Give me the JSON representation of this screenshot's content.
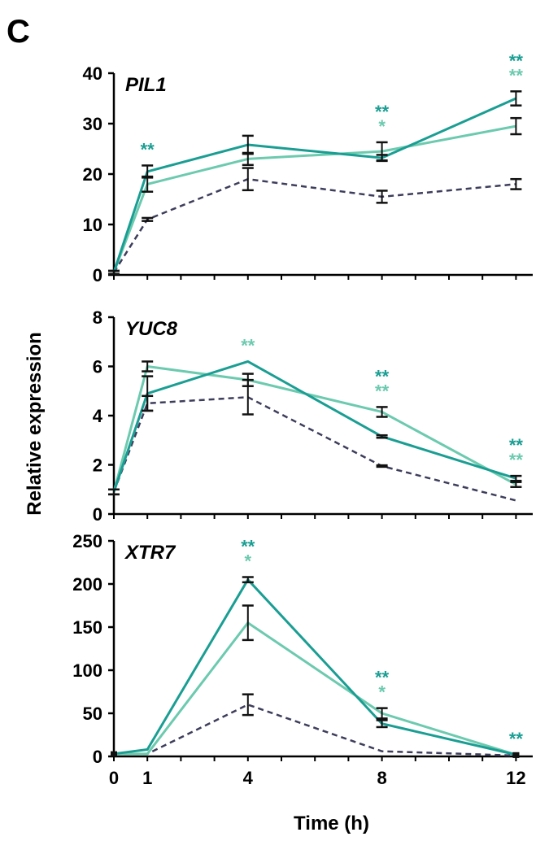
{
  "panel_label": "C",
  "colors": {
    "series_dark_teal": "#1a9e93",
    "series_light_teal": "#6ccaae",
    "series_dashed": "#3d3d5c",
    "error_bar": "#111111",
    "axis": "#000000"
  },
  "chart_data": [
    {
      "type": "line",
      "title": "PIL1",
      "xlabel": "",
      "ylabel": "",
      "x": [
        0,
        1,
        4,
        8,
        12
      ],
      "xlim": [
        0,
        12.5
      ],
      "ylim": [
        0,
        40
      ],
      "yticks": [
        0,
        10,
        20,
        30,
        40
      ],
      "series": [
        {
          "style": "dark_teal",
          "values": [
            0.5,
            20.5,
            25.8,
            23.2,
            35
          ],
          "errors": [
            0.3,
            1.2,
            1.8,
            0.6,
            1.4
          ]
        },
        {
          "style": "light_teal",
          "values": [
            0.5,
            18,
            23,
            24.5,
            29.5
          ],
          "errors": [
            0.3,
            1.5,
            1.2,
            1.8,
            1.6
          ]
        },
        {
          "style": "dashed",
          "values": [
            0.5,
            11,
            19,
            15.5,
            18
          ],
          "errors": [
            0.3,
            0.3,
            2.2,
            1.2,
            1.0
          ]
        }
      ],
      "significance": [
        {
          "x": 1,
          "marks": [
            {
              "style": "dark_teal",
              "text": "**"
            }
          ]
        },
        {
          "x": 8,
          "marks": [
            {
              "style": "dark_teal",
              "text": "**"
            },
            {
              "style": "light_teal",
              "text": "*"
            }
          ]
        },
        {
          "x": 12,
          "marks": [
            {
              "style": "dark_teal",
              "text": "**"
            },
            {
              "style": "light_teal",
              "text": "**"
            }
          ]
        }
      ]
    },
    {
      "type": "line",
      "title": "YUC8",
      "xlabel": "",
      "ylabel": "Relative expression",
      "x": [
        0,
        1,
        4,
        8,
        12
      ],
      "xlim": [
        0,
        12.5
      ],
      "ylim": [
        0,
        8
      ],
      "yticks": [
        0,
        2,
        4,
        6,
        8
      ],
      "series": [
        {
          "style": "dark_teal",
          "values": [
            0.9,
            4.9,
            6.2,
            3.15,
            1.45
          ],
          "errors": [
            0.1,
            0.7,
            0,
            0.05,
            0.1
          ]
        },
        {
          "style": "light_teal",
          "values": [
            0.9,
            6.0,
            5.45,
            4.15,
            1.2
          ],
          "errors": [
            0.1,
            0.2,
            0.25,
            0.2,
            0.1
          ]
        },
        {
          "style": "dashed",
          "values": [
            0.9,
            4.5,
            4.75,
            1.95,
            0.55
          ],
          "errors": [
            0.1,
            0.3,
            0.7,
            0.03,
            0
          ]
        }
      ],
      "significance": [
        {
          "x": 4,
          "marks": [
            {
              "style": "light_teal",
              "text": "**"
            }
          ]
        },
        {
          "x": 8,
          "marks": [
            {
              "style": "dark_teal",
              "text": "**"
            },
            {
              "style": "light_teal",
              "text": "**"
            }
          ]
        },
        {
          "x": 12,
          "marks": [
            {
              "style": "dark_teal",
              "text": "**"
            },
            {
              "style": "light_teal",
              "text": "**"
            }
          ]
        }
      ]
    },
    {
      "type": "line",
      "title": "XTR7",
      "xlabel": "Time (h)",
      "ylabel": "",
      "x": [
        0,
        1,
        4,
        8,
        12
      ],
      "xlim": [
        0,
        12.5
      ],
      "ylim": [
        0,
        250
      ],
      "yticks": [
        0,
        50,
        100,
        150,
        200,
        250
      ],
      "xticks": [
        0,
        1,
        4,
        8,
        12
      ],
      "series": [
        {
          "style": "dark_teal",
          "values": [
            3,
            8,
            205,
            38,
            2
          ],
          "errors": [
            0,
            0,
            3,
            4,
            0
          ]
        },
        {
          "style": "light_teal",
          "values": [
            3,
            3,
            155,
            50,
            2
          ],
          "errors": [
            0,
            0,
            20,
            6,
            0
          ]
        },
        {
          "style": "dashed",
          "values": [
            3,
            3,
            60,
            6,
            1
          ],
          "errors": [
            0,
            0,
            12,
            0,
            0
          ]
        }
      ],
      "significance": [
        {
          "x": 4,
          "marks": [
            {
              "style": "dark_teal",
              "text": "**"
            },
            {
              "style": "light_teal",
              "text": "*"
            }
          ]
        },
        {
          "x": 8,
          "marks": [
            {
              "style": "dark_teal",
              "text": "**"
            },
            {
              "style": "light_teal",
              "text": "*"
            }
          ]
        },
        {
          "x": 12,
          "marks": [
            {
              "style": "dark_teal",
              "text": "**"
            }
          ]
        }
      ]
    }
  ]
}
